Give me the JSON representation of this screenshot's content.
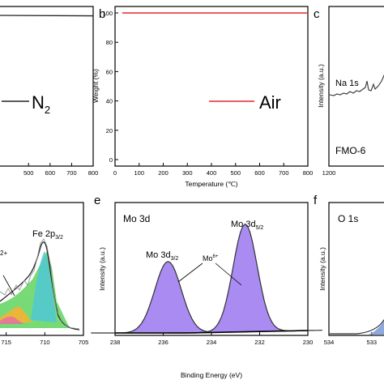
{
  "chart_data": [
    {
      "panel": "a",
      "type": "line",
      "xlabel": "",
      "ylabel": "",
      "xlim": [
        360,
        800
      ],
      "ylim": [
        0,
        100
      ],
      "x_ticks": [
        {
          "value": 500,
          "label": "500"
        },
        {
          "value": 600,
          "label": "600"
        },
        {
          "value": 700,
          "label": "700"
        },
        {
          "value": 800,
          "label": "800"
        }
      ],
      "series": [
        {
          "name": "N2",
          "color": "#222222",
          "x": [
            360,
            800
          ],
          "y": [
            99.0,
            98.7
          ]
        }
      ],
      "legend": {
        "label_main": "N",
        "label_sub": "2",
        "color": "#222222"
      }
    },
    {
      "panel": "b",
      "type": "line",
      "xlabel": "Temperature (℃)",
      "ylabel": "Weight (%)",
      "xlim": [
        0,
        800
      ],
      "ylim": [
        0,
        100
      ],
      "x_ticks": [
        {
          "value": 0,
          "label": "0"
        },
        {
          "value": 100,
          "label": "100"
        },
        {
          "value": 200,
          "label": "200"
        },
        {
          "value": 300,
          "label": "300"
        },
        {
          "value": 400,
          "label": "400"
        },
        {
          "value": 500,
          "label": "500"
        },
        {
          "value": 600,
          "label": "600"
        },
        {
          "value": 700,
          "label": "700"
        },
        {
          "value": 800,
          "label": "800"
        }
      ],
      "y_ticks": [
        {
          "value": 0,
          "label": "0"
        },
        {
          "value": 20,
          "label": "20"
        },
        {
          "value": 40,
          "label": "40"
        },
        {
          "value": 60,
          "label": "60"
        },
        {
          "value": 80,
          "label": "80"
        },
        {
          "value": 100,
          "label": "100"
        }
      ],
      "series": [
        {
          "name": "Air",
          "color": "#e8262b",
          "x": [
            30,
            800
          ],
          "y": [
            100,
            100
          ]
        }
      ],
      "legend": {
        "label": "Air",
        "color": "#e8262b"
      }
    },
    {
      "panel": "c",
      "type": "line",
      "xlabel": "",
      "ylabel": "Intensity (a.u.)",
      "xlim": [
        1200,
        850
      ],
      "x_ticks": [
        {
          "value": 1200,
          "label": "1200"
        },
        {
          "value": 1000,
          "label": "1000"
        }
      ],
      "annotations": [
        {
          "text": "Na 1s"
        }
      ],
      "sample_label": "FMO-6"
    },
    {
      "panel": "d",
      "type": "area",
      "xlabel": "",
      "ylabel": "",
      "xlim": [
        720,
        705
      ],
      "x_ticks": [
        {
          "value": 715,
          "label": "715"
        },
        {
          "value": 710,
          "label": "710"
        },
        {
          "value": 705,
          "label": "705"
        }
      ],
      "peak_label": {
        "main": "Fe 2p",
        "sub": "3/2"
      },
      "annotations": [
        {
          "text": "2+"
        }
      ]
    },
    {
      "panel": "e",
      "type": "area",
      "title": "Mo 3d",
      "xlabel": "Binding Energy (eV)",
      "ylabel": "Intensity (a.u.)",
      "xlim": [
        238,
        230
      ],
      "x_ticks": [
        {
          "value": 238,
          "label": "238"
        },
        {
          "value": 236,
          "label": "236"
        },
        {
          "value": 234,
          "label": "234"
        },
        {
          "value": 232,
          "label": "232"
        },
        {
          "value": 230,
          "label": "230"
        }
      ],
      "peaks": [
        {
          "label_main": "Mo 3d",
          "label_sub": "3/2",
          "center": 235.8,
          "height": 0.63
        },
        {
          "label_main": "Mo 3d",
          "label_sub": "5/2",
          "center": 232.6,
          "height": 0.95
        }
      ],
      "annotation": {
        "main": "Mo",
        "sup": "6+"
      },
      "fill_color": "#a98bf2"
    },
    {
      "panel": "f",
      "type": "area",
      "title": "O 1s",
      "xlabel": "",
      "ylabel": "Intensity (a.u.)",
      "xlim": [
        534,
        531.5
      ],
      "x_ticks": [
        {
          "value": 534,
          "label": "534"
        },
        {
          "value": 533,
          "label": "533"
        }
      ]
    }
  ],
  "panel_letters": {
    "b": "b",
    "c": "c",
    "e": "e",
    "f": "f"
  }
}
